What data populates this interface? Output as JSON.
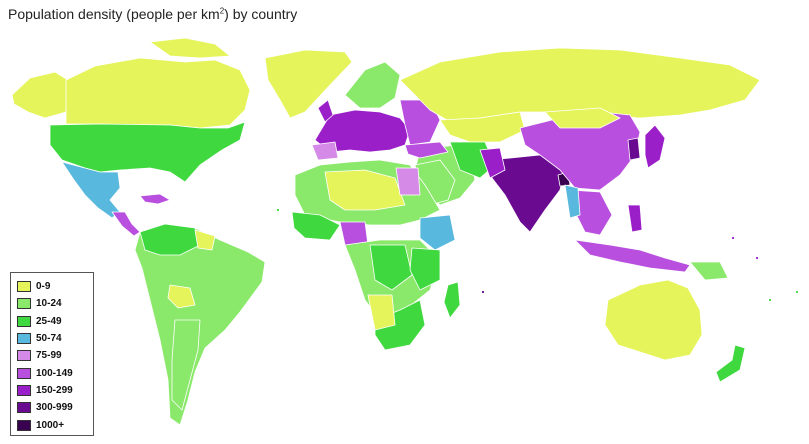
{
  "title": {
    "prefix": "Population density (people per km",
    "superscript": "2",
    "suffix": ") by country"
  },
  "legend": [
    {
      "label": "0-9",
      "color": "#e5f45a"
    },
    {
      "label": "10-24",
      "color": "#8ae86a"
    },
    {
      "label": "25-49",
      "color": "#3fd93f"
    },
    {
      "label": "50-74",
      "color": "#59b8dd"
    },
    {
      "label": "75-99",
      "color": "#d68ae8"
    },
    {
      "label": "100-149",
      "color": "#b94fdf"
    },
    {
      "label": "150-299",
      "color": "#9b1fc9"
    },
    {
      "label": "300-999",
      "color": "#6a0a90"
    },
    {
      "label": "1000+",
      "color": "#3a0050"
    }
  ]
}
